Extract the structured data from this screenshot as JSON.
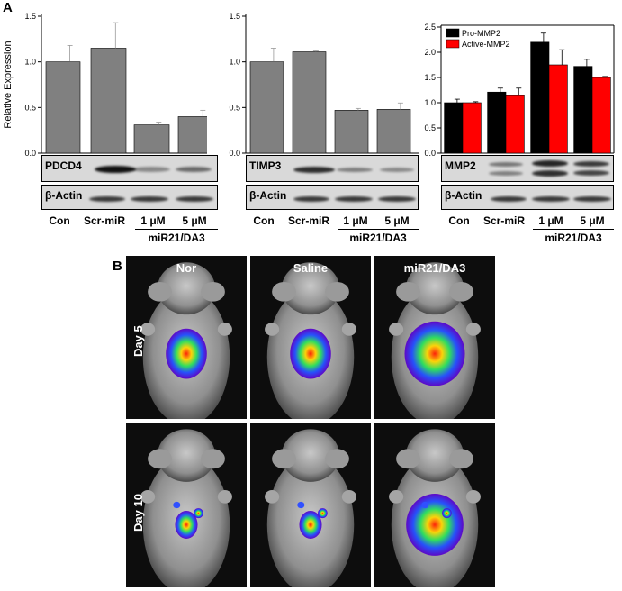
{
  "panels": {
    "a_letter": "A",
    "b_letter": "B"
  },
  "chart_data": [
    {
      "type": "bar",
      "ylabel": "Relative Expression",
      "ylim": [
        0,
        1.5
      ],
      "yticks": [
        "0.0",
        "0.5",
        "1.0",
        "1.5"
      ],
      "categories": [
        "Con",
        "Scr-miR",
        "1 μM",
        "5 μM"
      ],
      "series": [
        {
          "values": [
            1.0,
            1.15,
            0.31,
            0.4
          ],
          "errors": [
            0.18,
            0.28,
            0.03,
            0.07
          ],
          "color": "#808080"
        }
      ]
    },
    {
      "type": "bar",
      "ylim": [
        0,
        1.5
      ],
      "yticks": [
        "0.0",
        "0.5",
        "1.0",
        "1.5"
      ],
      "categories": [
        "Con",
        "Scr-miR",
        "1 μM",
        "5 μM"
      ],
      "series": [
        {
          "values": [
            1.0,
            1.11,
            0.47,
            0.48
          ],
          "errors": [
            0.15,
            0.01,
            0.02,
            0.07
          ],
          "color": "#808080"
        }
      ]
    },
    {
      "type": "bar",
      "ylim": [
        0,
        2.5
      ],
      "yticks": [
        "0.0",
        "0.5",
        "1.0",
        "1.5",
        "2.0",
        "2.5"
      ],
      "categories": [
        "Con",
        "Scr-miR",
        "1 μM",
        "5 μM"
      ],
      "legend_position": "top-left",
      "series": [
        {
          "name": "Pro-MMP2",
          "values": [
            1.0,
            1.21,
            2.2,
            1.72
          ],
          "errors": [
            0.07,
            0.08,
            0.18,
            0.14
          ],
          "color": "#000000"
        },
        {
          "name": "Active-MMP2",
          "values": [
            1.0,
            1.14,
            1.75,
            1.5
          ],
          "errors": [
            0.02,
            0.15,
            0.3,
            0.02
          ],
          "color": "#ff0000"
        }
      ]
    }
  ],
  "blots": [
    {
      "top_label": "PDCD4",
      "bottom_label": "β-Actin"
    },
    {
      "top_label": "TIMP3",
      "bottom_label": "β-Actin"
    },
    {
      "top_label": "MMP2",
      "bottom_label": "β-Actin"
    }
  ],
  "lanes": [
    "Con",
    "Scr-miR",
    "1 μM",
    "5 μM"
  ],
  "group_label": "miR21/DA3",
  "imaging": {
    "columns": [
      "Nor",
      "Saline",
      "miR21/DA3"
    ],
    "rows": [
      "Day 5",
      "Day 10"
    ]
  }
}
